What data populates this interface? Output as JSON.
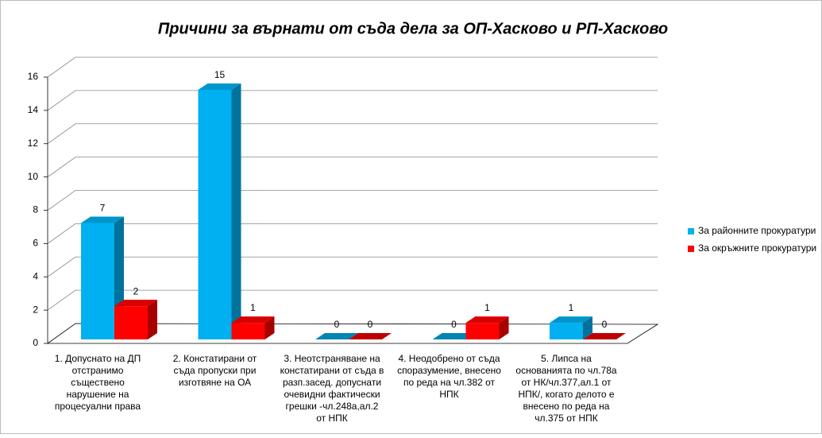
{
  "chart_data": {
    "type": "bar3d",
    "title": "Причини за върнати от съда дела за ОП-Хасково и РП-Хасково",
    "categories": [
      "1. Допуснато на ДП отстранимо съществено нарушение на процесуални права",
      "2. Констатирани от съда пропуски при изготвяне на ОА",
      "3. Неотстраняване на констатирани от съда в разп.засед. допуснати очевидни фактически грешки -чл.248а,ал.2 от НПК",
      "4. Неодобрено от съда споразумение, внесено по реда на чл.382 от НПК",
      "5. Липса на основанията по чл.78а от НК/чл.377,ал.1 от НПК/, когато делото е внесено по реда на чл.375 от НПК"
    ],
    "series": [
      {
        "name": "За районните прокуратури",
        "color": "#00b0f0",
        "values": [
          7,
          15,
          0,
          0,
          1
        ]
      },
      {
        "name": "За окръжните прокуратури",
        "color": "#ff0000",
        "values": [
          2,
          1,
          0,
          1,
          0
        ]
      }
    ],
    "ylim": [
      0,
      16
    ],
    "yticks": [
      0,
      2,
      4,
      6,
      8,
      10,
      12,
      14,
      16
    ],
    "grid": true,
    "legend": "right"
  }
}
